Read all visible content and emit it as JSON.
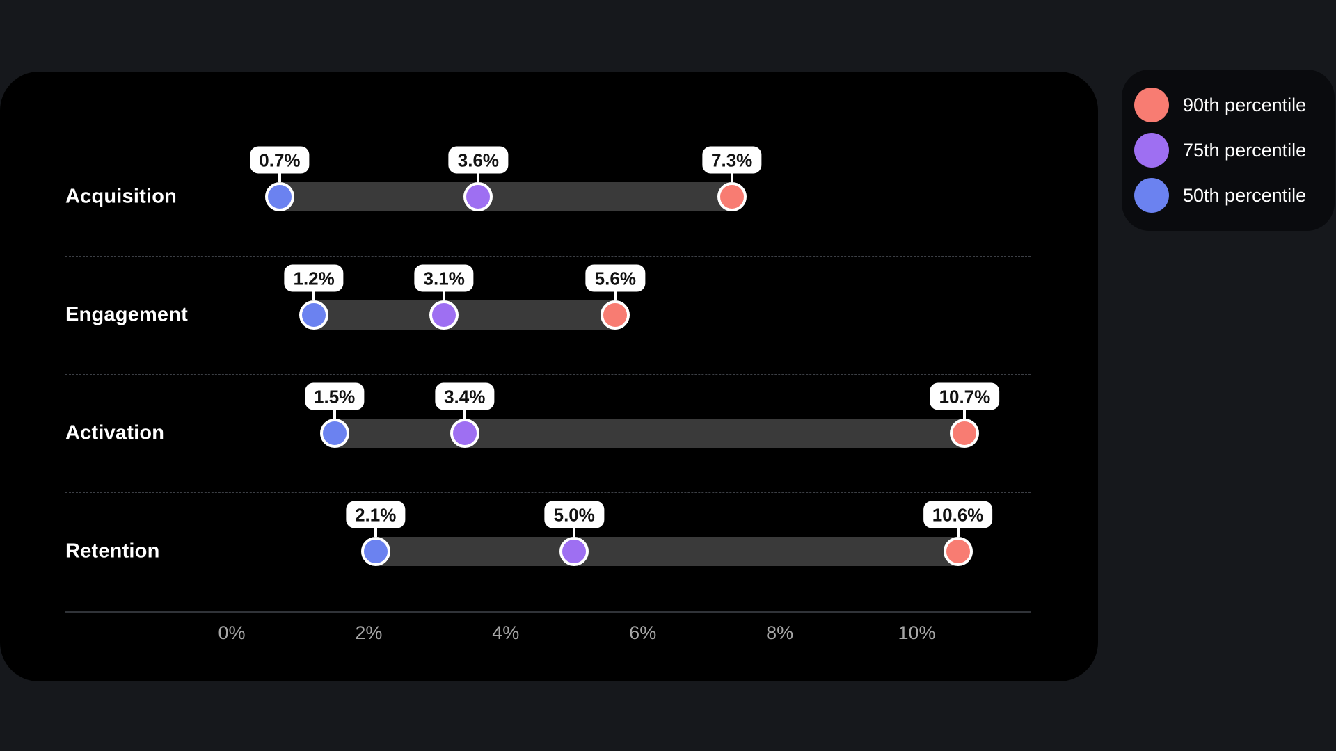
{
  "page": {
    "background_color": "#16181c",
    "panel_color": "#000000"
  },
  "legend": {
    "background_color": "#0a0b0e",
    "items": [
      {
        "label": "90th percentile",
        "color": "#f87c72"
      },
      {
        "label": "75th percentile",
        "color": "#9e6ff2"
      },
      {
        "label": "50th percentile",
        "color": "#6b82f0"
      }
    ]
  },
  "chart_data": {
    "type": "dumbbell",
    "orientation": "horizontal",
    "categories": [
      "Acquisition",
      "Engagement",
      "Activation",
      "Retention"
    ],
    "series": [
      {
        "name": "50th percentile",
        "color": "#6b82f0",
        "values": [
          0.7,
          1.2,
          1.5,
          2.1
        ]
      },
      {
        "name": "75th percentile",
        "color": "#9e6ff2",
        "values": [
          3.6,
          3.1,
          3.4,
          5.0
        ]
      },
      {
        "name": "90th percentile",
        "color": "#f87c72",
        "values": [
          7.3,
          5.6,
          10.7,
          10.6
        ]
      }
    ],
    "point_labels": [
      [
        "0.7%",
        "3.6%",
        "7.3%"
      ],
      [
        "1.2%",
        "3.1%",
        "5.6%"
      ],
      [
        "1.5%",
        "3.4%",
        "10.7%"
      ],
      [
        "2.1%",
        "5.0%",
        "10.6%"
      ]
    ],
    "x_ticks": [
      {
        "value": 0,
        "label": "0%"
      },
      {
        "value": 2,
        "label": "2%"
      },
      {
        "value": 4,
        "label": "4%"
      },
      {
        "value": 6,
        "label": "6%"
      },
      {
        "value": 8,
        "label": "8%"
      },
      {
        "value": 10,
        "label": "10%"
      }
    ],
    "xlim": [
      0,
      11.66
    ],
    "connector_color": "#3a3a3a",
    "grid": false,
    "row_separator_color": "#3c3f45",
    "axis_line_color": "#303338",
    "tick_label_color": "#a6a6a6",
    "badge": {
      "background": "#ffffff",
      "text_color": "#121212"
    },
    "legend_position": "top-right"
  }
}
